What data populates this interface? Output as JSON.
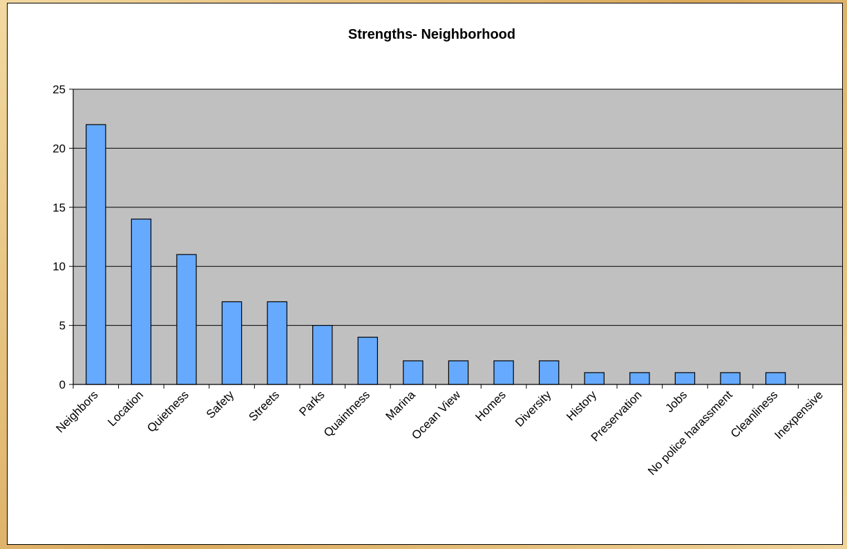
{
  "chart_data": {
    "type": "bar",
    "title": "Strengths- Neighborhood",
    "xlabel": "",
    "ylabel": "",
    "categories": [
      "Neighbors",
      "Location",
      "Quietness",
      "Safety",
      "Streets",
      "Parks",
      "Quaintness",
      "Marina",
      "Ocean View",
      "Homes",
      "Diversity",
      "History",
      "Preservation",
      "Jobs",
      "No police harassment",
      "Cleanliness",
      "Inexpensive"
    ],
    "values": [
      22,
      14,
      11,
      7,
      7,
      5,
      4,
      2,
      2,
      2,
      2,
      1,
      1,
      1,
      1,
      1,
      0
    ],
    "ylim": [
      0,
      25
    ],
    "yticks": [
      0,
      5,
      10,
      15,
      20,
      25
    ],
    "grid": true,
    "legend": "none",
    "colors": {
      "bar_fill": "#66aaff",
      "bar_stroke": "#000000",
      "plot_background": "#c0c0c0",
      "gridline": "#000000"
    }
  }
}
